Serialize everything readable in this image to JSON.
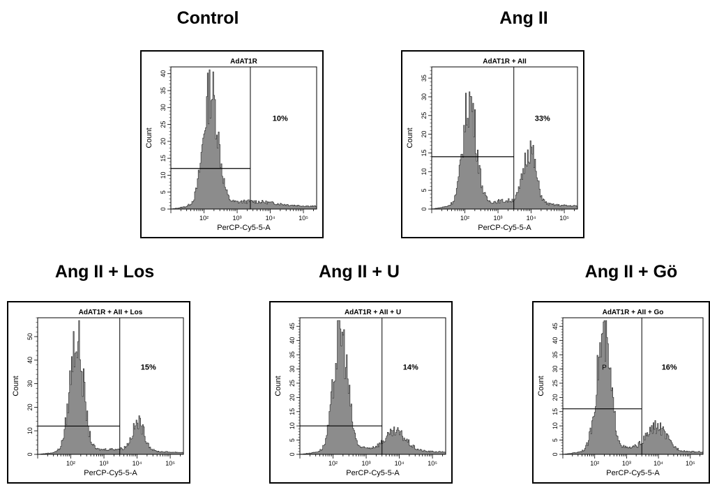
{
  "page": {
    "condition_titles": [
      "Control",
      "Ang II",
      "Ang II +  Los",
      "Ang II + U",
      "Ang II + Gö"
    ]
  },
  "chart_data": [
    {
      "type": "histogram",
      "panel_title": "AdAT1R",
      "xlabel": "PerCP-Cy5-5-A",
      "ylabel": "Count",
      "x_scale": "log",
      "xlim": [
        10,
        250000
      ],
      "ylim": [
        0,
        42
      ],
      "x_ticks": [
        "10²",
        "10³",
        "10⁴",
        "10⁵"
      ],
      "x_tick_values": [
        100,
        1000,
        10000,
        100000
      ],
      "y_ticks": [
        "0",
        "5",
        "10",
        "15",
        "20",
        "25",
        "30",
        "35",
        "40"
      ],
      "y_tick_values": [
        0,
        5,
        10,
        15,
        20,
        25,
        30,
        35,
        40
      ],
      "gate_x": 2500,
      "marker_y": 12,
      "percent_label": "10%",
      "peaks": [
        {
          "x": 160,
          "y": 35,
          "w": 0.22
        }
      ],
      "fill_color": "#8c8c8c"
    },
    {
      "type": "histogram",
      "panel_title": "AdAT1R + AII",
      "xlabel": "PerCP-Cy5-5-A",
      "ylabel": "Count",
      "x_scale": "log",
      "xlim": [
        10,
        250000
      ],
      "ylim": [
        0,
        38
      ],
      "x_ticks": [
        "10²",
        "10³",
        "10⁴",
        "10⁵"
      ],
      "x_tick_values": [
        100,
        1000,
        10000,
        100000
      ],
      "y_ticks": [
        "0",
        "5",
        "10",
        "15",
        "20",
        "25",
        "30",
        "35"
      ],
      "y_tick_values": [
        0,
        5,
        10,
        15,
        20,
        25,
        30,
        35
      ],
      "gate_x": 3000,
      "marker_y": 14,
      "percent_label": "33%",
      "peaks": [
        {
          "x": 140,
          "y": 29,
          "w": 0.2
        },
        {
          "x": 9000,
          "y": 15,
          "w": 0.18
        }
      ],
      "fill_color": "#8c8c8c"
    },
    {
      "type": "histogram",
      "panel_title": "AdAT1R + AII + Los",
      "xlabel": "PerCP-Cy5-5-A",
      "ylabel": "Count",
      "x_scale": "log",
      "xlim": [
        10,
        250000
      ],
      "ylim": [
        0,
        58
      ],
      "x_ticks": [
        "10²",
        "10³",
        "10⁴",
        "10⁵"
      ],
      "x_tick_values": [
        100,
        1000,
        10000,
        100000
      ],
      "y_ticks": [
        "0",
        "10",
        "20",
        "30",
        "40",
        "50"
      ],
      "y_tick_values": [
        0,
        10,
        20,
        30,
        40,
        50
      ],
      "gate_x": 3000,
      "marker_y": 12,
      "percent_label": "15%",
      "peaks": [
        {
          "x": 150,
          "y": 50,
          "w": 0.2
        },
        {
          "x": 11000,
          "y": 12,
          "w": 0.18
        }
      ],
      "fill_color": "#8c8c8c"
    },
    {
      "type": "histogram",
      "panel_title": "AdAT1R + AII + U",
      "xlabel": "PerCP-Cy5-5-A",
      "ylabel": "Count",
      "x_scale": "log",
      "xlim": [
        10,
        250000
      ],
      "ylim": [
        0,
        48
      ],
      "x_ticks": [
        "10²",
        "10³",
        "10⁴",
        "10⁵"
      ],
      "x_tick_values": [
        100,
        1000,
        10000,
        100000
      ],
      "y_ticks": [
        "0",
        "5",
        "10",
        "15",
        "20",
        "25",
        "30",
        "35",
        "40",
        "45"
      ],
      "y_tick_values": [
        0,
        5,
        10,
        15,
        20,
        25,
        30,
        35,
        40,
        45
      ],
      "gate_x": 3000,
      "marker_y": 10,
      "percent_label": "14%",
      "peaks": [
        {
          "x": 170,
          "y": 43,
          "w": 0.21
        },
        {
          "x": 8000,
          "y": 6,
          "w": 0.3
        }
      ],
      "fill_color": "#8c8c8c"
    },
    {
      "type": "histogram",
      "panel_title": "AdAT1R + AII + Go",
      "xlabel": "PerCP-Cy5-5-A",
      "ylabel": "Count",
      "x_scale": "log",
      "xlim": [
        10,
        250000
      ],
      "ylim": [
        0,
        48
      ],
      "x_ticks": [
        "10²",
        "10³",
        "10⁴",
        "10⁵"
      ],
      "x_tick_values": [
        100,
        1000,
        10000,
        100000
      ],
      "y_ticks": [
        "0",
        "5",
        "10",
        "15",
        "20",
        "25",
        "30",
        "35",
        "40",
        "45"
      ],
      "y_tick_values": [
        0,
        5,
        10,
        15,
        20,
        25,
        30,
        35,
        40,
        45
      ],
      "gate_x": 3000,
      "marker_y": 16,
      "percent_label": "16%",
      "gate_label": "P",
      "peaks": [
        {
          "x": 190,
          "y": 41,
          "w": 0.22
        },
        {
          "x": 9000,
          "y": 8,
          "w": 0.3
        }
      ],
      "fill_color": "#8c8c8c"
    }
  ]
}
